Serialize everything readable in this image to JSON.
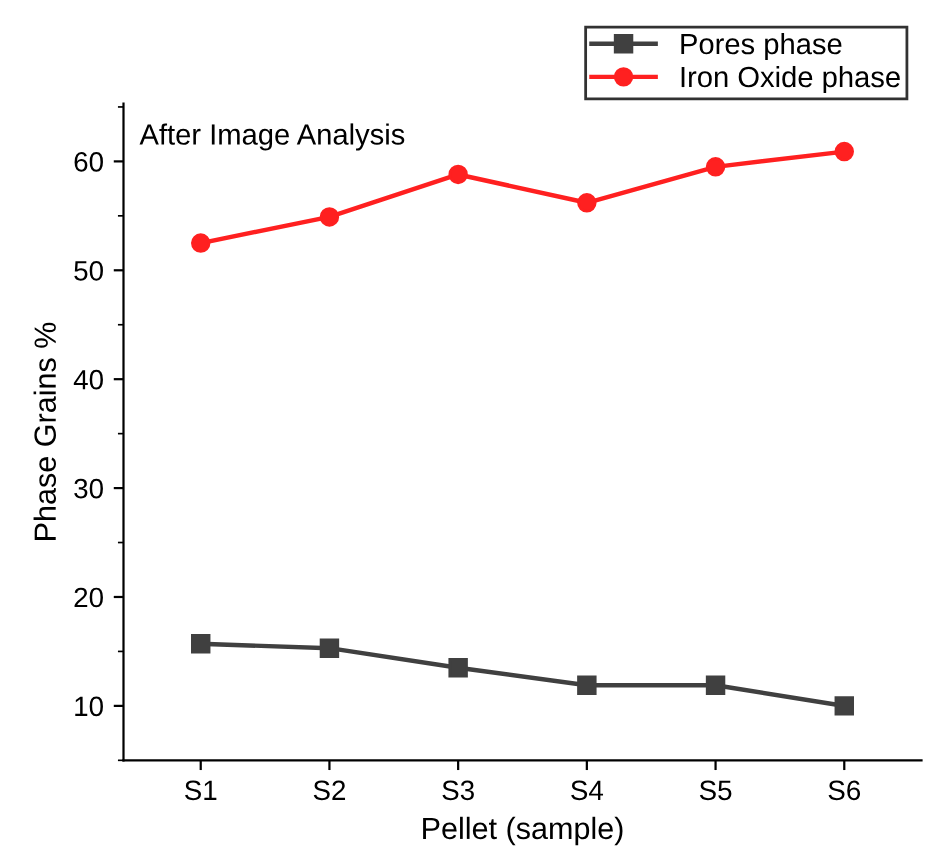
{
  "chart_data": {
    "type": "line",
    "xlabel": "Pellet (sample)",
    "ylabel": "Phase Grains %",
    "annotations": [
      "After Image Analysis"
    ],
    "categories": [
      "S1",
      "S2",
      "S3",
      "S4",
      "S5",
      "S6"
    ],
    "series": [
      {
        "name": "Pores phase",
        "color": "#404040",
        "marker": "square",
        "values": [
          15.7,
          15.3,
          13.5,
          11.9,
          11.9,
          10.0
        ]
      },
      {
        "name": "Iron Oxide phase",
        "color": "#ff2020",
        "marker": "circle",
        "values": [
          52.5,
          54.9,
          58.8,
          56.2,
          59.5,
          60.9
        ]
      }
    ],
    "ylim": [
      5,
      65.3
    ],
    "yticks": [
      10,
      20,
      30,
      40,
      50,
      60
    ],
    "grid": false,
    "legend": "top right",
    "line_style": "solid"
  }
}
